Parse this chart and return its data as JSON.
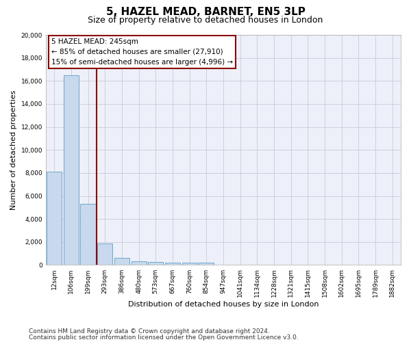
{
  "title": "5, HAZEL MEAD, BARNET, EN5 3LP",
  "subtitle": "Size of property relative to detached houses in London",
  "xlabel": "Distribution of detached houses by size in London",
  "ylabel": "Number of detached properties",
  "categories": [
    "12sqm",
    "106sqm",
    "199sqm",
    "293sqm",
    "386sqm",
    "480sqm",
    "573sqm",
    "667sqm",
    "760sqm",
    "854sqm",
    "947sqm",
    "1041sqm",
    "1134sqm",
    "1228sqm",
    "1321sqm",
    "1415sqm",
    "1508sqm",
    "1602sqm",
    "1695sqm",
    "1789sqm",
    "1882sqm"
  ],
  "values": [
    8100,
    16500,
    5300,
    1850,
    650,
    330,
    270,
    215,
    185,
    215,
    0,
    0,
    0,
    0,
    0,
    0,
    0,
    0,
    0,
    0,
    0
  ],
  "bar_color": "#c8d9ed",
  "bar_edge_color": "#6ea6cc",
  "vline_x": 2.5,
  "vline_color": "#8b0000",
  "annotation_line1": "5 HAZEL MEAD: 245sqm",
  "annotation_line2": "← 85% of detached houses are smaller (27,910)",
  "annotation_line3": "15% of semi-detached houses are larger (4,996) →",
  "annotation_box_edgecolor": "#8b0000",
  "ylim_max": 20000,
  "yticks": [
    0,
    2000,
    4000,
    6000,
    8000,
    10000,
    12000,
    14000,
    16000,
    18000,
    20000
  ],
  "grid_color": "#c8ccd8",
  "bg_color": "#edf0f8",
  "footer_line1": "Contains HM Land Registry data © Crown copyright and database right 2024.",
  "footer_line2": "Contains public sector information licensed under the Open Government Licence v3.0.",
  "title_fontsize": 11,
  "subtitle_fontsize": 9,
  "axis_label_fontsize": 8,
  "tick_fontsize": 6.5,
  "annotation_fontsize": 7.5,
  "footer_fontsize": 6.5
}
